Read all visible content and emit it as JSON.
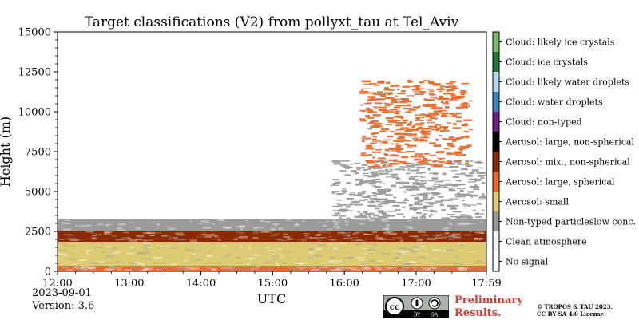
{
  "chart_data": {
    "type": "heatmap",
    "title": "Target classifications (V2) from pollyxt_tau at Tel_Aviv",
    "xlabel": "UTC",
    "ylabel": "Height (m)",
    "x_ticks": [
      "12:00",
      "13:00",
      "14:00",
      "15:00",
      "16:00",
      "17:00",
      "17:59"
    ],
    "y_ticks": [
      0,
      2500,
      5000,
      7500,
      10000,
      12500,
      15000
    ],
    "ylim": [
      0,
      15000
    ],
    "x_range_hours": [
      12.0,
      17.98
    ],
    "legend": [
      {
        "label": "Cloud: likely ice crystals",
        "color": "#7fb96c"
      },
      {
        "label": "Cloud: ice crystals",
        "color": "#1f7a36"
      },
      {
        "label": "Cloud: likely water droplets",
        "color": "#b6d7f0"
      },
      {
        "label": "Cloud: water droplets",
        "color": "#3d87c4"
      },
      {
        "label": "Cloud: non-typed",
        "color": "#6e1f8a"
      },
      {
        "label": "Aerosol: large, non-spherical",
        "color": "#000000"
      },
      {
        "label": "Aerosol: mix., non-spherical",
        "color": "#8b2a02"
      },
      {
        "label": "Aerosol: large, spherical",
        "color": "#e86b2c"
      },
      {
        "label": "Aerosol: small",
        "color": "#dccb72"
      },
      {
        "label": "Non-typed particleslow conc.",
        "color": "#9b9b9b"
      },
      {
        "label": "Clean atmosphere",
        "color": "#f2f2f2"
      },
      {
        "label": "No signal",
        "color": "#ffffff"
      }
    ],
    "layers": [
      {
        "class": "Aerosol: large, spherical",
        "from_m": 0,
        "to_m": 350,
        "t_start": 12.0,
        "t_end": 17.98
      },
      {
        "class": "Aerosol: small",
        "from_m": 350,
        "to_m": 1850,
        "t_start": 12.0,
        "t_end": 17.98
      },
      {
        "class": "Aerosol: mix., non-spherical",
        "from_m": 1850,
        "to_m": 2550,
        "t_start": 12.0,
        "t_end": 17.98
      },
      {
        "class": "Non-typed particleslow conc.",
        "from_m": 2550,
        "to_m": 3300,
        "t_start": 12.0,
        "t_end": 17.98
      },
      {
        "class": "Non-typed particleslow conc.",
        "from_m": 3300,
        "to_m": 7000,
        "t_start": 15.8,
        "t_end": 17.98
      },
      {
        "class": "Aerosol: large, spherical",
        "from_m": 6500,
        "to_m": 12000,
        "t_start": 16.2,
        "t_end": 17.8
      }
    ]
  },
  "footer": {
    "date": "2023-09-01",
    "version": "Version: 3.6",
    "preliminary_line1": "Preliminary",
    "preliminary_line2": "Results.",
    "copyright_line1": "© TROPOS & TAU 2023.",
    "copyright_line2": "CC BY SA 4.0 License."
  },
  "cc_badge": {
    "cc": "cc",
    "by": "BY",
    "sa": "SA"
  }
}
